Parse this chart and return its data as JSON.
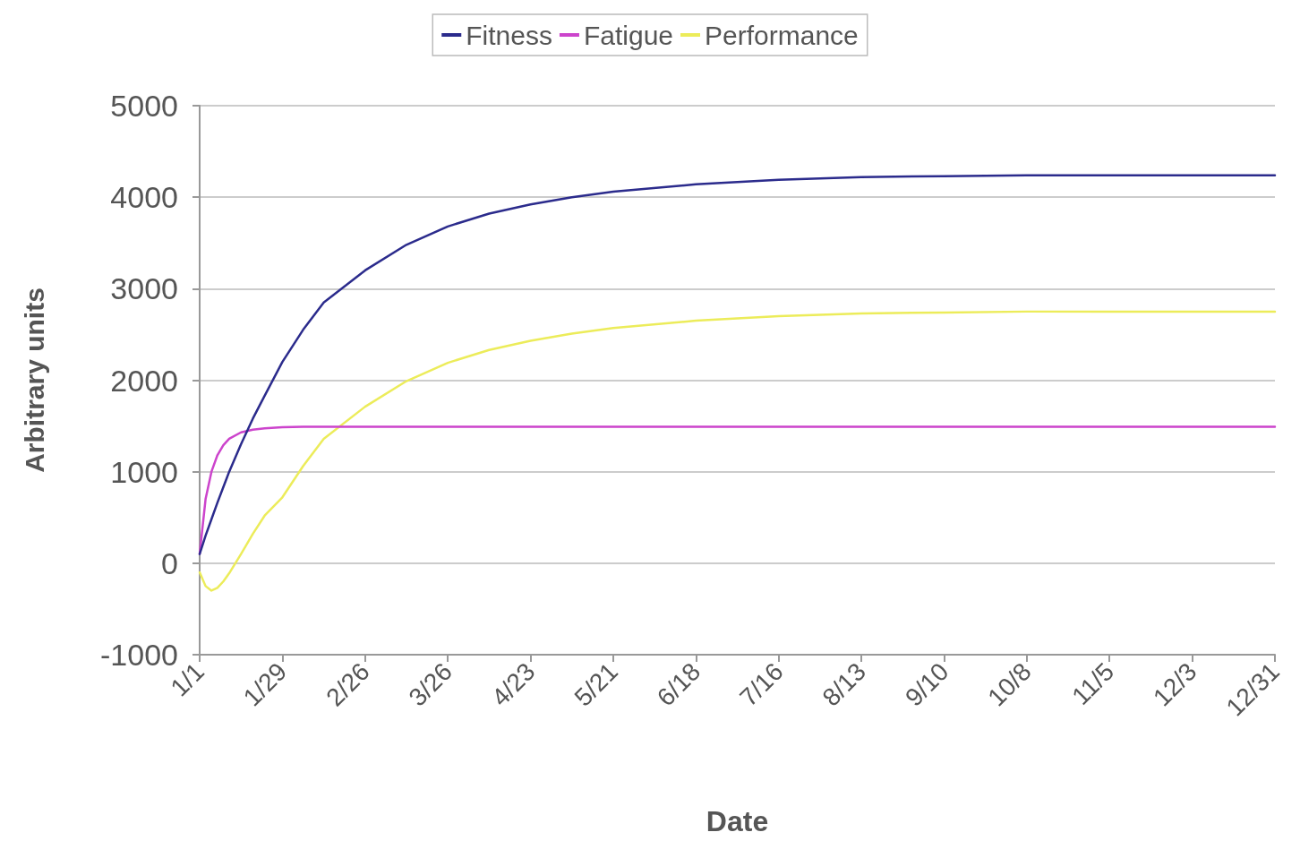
{
  "chart_data": {
    "type": "line",
    "xlabel": "Date",
    "ylabel": "Arbitrary units",
    "x": [
      "--01-01",
      "--01-03",
      "--01-05",
      "--01-07",
      "--01-09",
      "--01-11",
      "--01-15",
      "--01-19",
      "--01-23",
      "--01-29",
      "--02-05",
      "--02-12",
      "--02-26",
      "--03-12",
      "--03-26",
      "--04-09",
      "--04-23",
      "--05-07",
      "--05-21",
      "--06-18",
      "--07-16",
      "--08-13",
      "--09-10",
      "--10-08",
      "--11-05",
      "--12-03",
      "--12-31"
    ],
    "series": [
      {
        "name": "Fitness",
        "color": "#2b2b8c",
        "values": [
          100,
          300,
          480,
          660,
          830,
          1000,
          1300,
          1580,
          1830,
          2200,
          2550,
          2850,
          3200,
          3480,
          3680,
          3820,
          3920,
          4000,
          4060,
          4140,
          4190,
          4220,
          4230,
          4240,
          4240,
          4240,
          4240
        ]
      },
      {
        "name": "Fatigue",
        "color": "#cc44cc",
        "values": [
          100,
          700,
          1000,
          1180,
          1290,
          1360,
          1430,
          1460,
          1475,
          1485,
          1490,
          1490,
          1490,
          1490,
          1490,
          1490,
          1490,
          1490,
          1490,
          1490,
          1490,
          1490,
          1490,
          1490,
          1490,
          1490,
          1490
        ]
      },
      {
        "name": "Performance",
        "color": "#ecec5a",
        "values": [
          -100,
          -250,
          -300,
          -270,
          -200,
          -110,
          100,
          320,
          520,
          720,
          1060,
          1360,
          1710,
          1990,
          2190,
          2330,
          2430,
          2510,
          2570,
          2650,
          2700,
          2730,
          2740,
          2750,
          2750,
          2750,
          2750
        ]
      }
    ],
    "xlim": [
      "--01-01",
      "--12-31"
    ],
    "xticks": [
      {
        "value": "--01-01",
        "label": "1/1"
      },
      {
        "value": "--01-29",
        "label": "1/29"
      },
      {
        "value": "--02-26",
        "label": "2/26"
      },
      {
        "value": "--03-26",
        "label": "3/26"
      },
      {
        "value": "--04-23",
        "label": "4/23"
      },
      {
        "value": "--05-21",
        "label": "5/21"
      },
      {
        "value": "--06-18",
        "label": "6/18"
      },
      {
        "value": "--07-16",
        "label": "7/16"
      },
      {
        "value": "--08-13",
        "label": "8/13"
      },
      {
        "value": "--09-10",
        "label": "9/10"
      },
      {
        "value": "--10-08",
        "label": "10/8"
      },
      {
        "value": "--11-05",
        "label": "11/5"
      },
      {
        "value": "--12-03",
        "label": "12/3"
      },
      {
        "value": "--12-31",
        "label": "12/31"
      }
    ],
    "ylim": [
      -1000,
      5000
    ],
    "yticks": [
      -1000,
      0,
      1000,
      2000,
      3000,
      4000,
      5000
    ],
    "grid": "y",
    "legend": "top",
    "marker": "none",
    "line_style": "solid"
  }
}
